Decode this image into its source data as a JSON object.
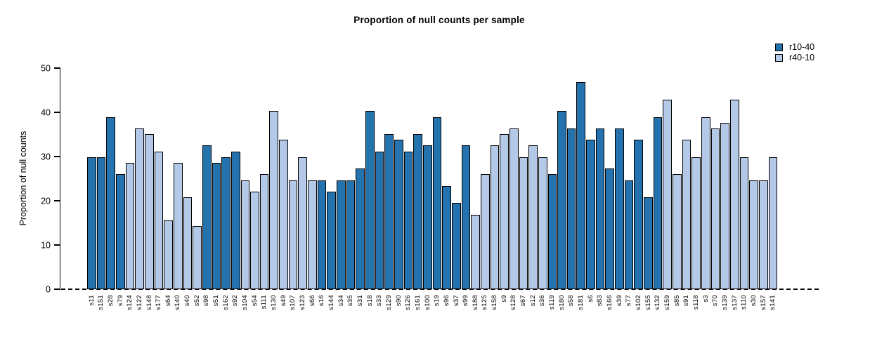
{
  "chart_data": {
    "type": "bar",
    "title": "Proportion of null counts per sample",
    "ylabel": "Proportion of null counts",
    "xlabel": "",
    "ylim": [
      0,
      50
    ],
    "yticks": [
      0,
      10,
      20,
      30,
      40,
      50
    ],
    "grid": false,
    "baseline": {
      "y": 0,
      "style": "dashed"
    },
    "legend": {
      "position": "top-right",
      "entries": [
        {
          "name": "r10-40",
          "color": "#2473AE"
        },
        {
          "name": "r40-10",
          "color": "#B4C9E8"
        }
      ]
    },
    "bar_border_color": "#000000",
    "categories": [
      "s11",
      "s151",
      "s28",
      "s79",
      "s124",
      "s122",
      "s148",
      "s177",
      "s64",
      "s140",
      "s40",
      "s52",
      "s98",
      "s51",
      "s162",
      "s92",
      "s104",
      "s54",
      "s111",
      "s130",
      "s49",
      "s107",
      "s123",
      "s66",
      "s16",
      "s144",
      "s34",
      "s35",
      "s31",
      "s18",
      "s33",
      "s129",
      "s90",
      "s126",
      "s161",
      "s100",
      "s19",
      "s96",
      "s37",
      "s99",
      "s188",
      "s125",
      "s158",
      "s9",
      "s128",
      "s67",
      "s12",
      "s36",
      "s119",
      "s180",
      "s58",
      "s181",
      "s6",
      "s83",
      "s166",
      "s39",
      "s77",
      "s102",
      "s155",
      "s132",
      "s159",
      "s85",
      "s91",
      "s118",
      "s3",
      "s70",
      "s139",
      "s137",
      "s110",
      "s30",
      "s157",
      "s141"
    ],
    "groups": [
      "r10-40",
      "r10-40",
      "r10-40",
      "r10-40",
      "r40-10",
      "r40-10",
      "r40-10",
      "r40-10",
      "r40-10",
      "r40-10",
      "r40-10",
      "r40-10",
      "r10-40",
      "r10-40",
      "r10-40",
      "r10-40",
      "r40-10",
      "r40-10",
      "r40-10",
      "r40-10",
      "r40-10",
      "r40-10",
      "r40-10",
      "r40-10",
      "r10-40",
      "r10-40",
      "r10-40",
      "r10-40",
      "r10-40",
      "r10-40",
      "r10-40",
      "r10-40",
      "r10-40",
      "r10-40",
      "r10-40",
      "r10-40",
      "r10-40",
      "r10-40",
      "r10-40",
      "r10-40",
      "r40-10",
      "r40-10",
      "r40-10",
      "r40-10",
      "r40-10",
      "r40-10",
      "r40-10",
      "r40-10",
      "r10-40",
      "r10-40",
      "r10-40",
      "r10-40",
      "r10-40",
      "r10-40",
      "r10-40",
      "r10-40",
      "r10-40",
      "r10-40",
      "r10-40",
      "r10-40",
      "r40-10",
      "r40-10",
      "r40-10",
      "r40-10",
      "r40-10",
      "r40-10",
      "r40-10",
      "r40-10",
      "r40-10",
      "r40-10",
      "r40-10",
      "r40-10"
    ],
    "values": [
      29.87,
      29.87,
      38.96,
      25.97,
      28.57,
      36.36,
      35.06,
      31.17,
      15.58,
      28.57,
      20.78,
      14.29,
      32.47,
      28.57,
      29.87,
      31.17,
      24.68,
      22.08,
      25.97,
      40.26,
      33.77,
      24.68,
      29.87,
      24.68,
      24.68,
      22.08,
      24.68,
      24.68,
      27.27,
      40.26,
      31.17,
      35.06,
      33.77,
      31.17,
      35.06,
      32.47,
      38.96,
      23.38,
      19.48,
      32.47,
      16.88,
      25.97,
      32.47,
      35.06,
      36.36,
      29.87,
      32.47,
      29.87,
      25.97,
      40.26,
      36.36,
      46.75,
      33.77,
      36.36,
      27.27,
      36.36,
      24.68,
      33.77,
      20.78,
      38.96,
      42.86,
      25.97,
      33.77,
      29.87,
      38.96,
      36.36,
      37.66,
      42.86,
      29.87,
      24.68,
      24.68,
      29.87
    ]
  }
}
